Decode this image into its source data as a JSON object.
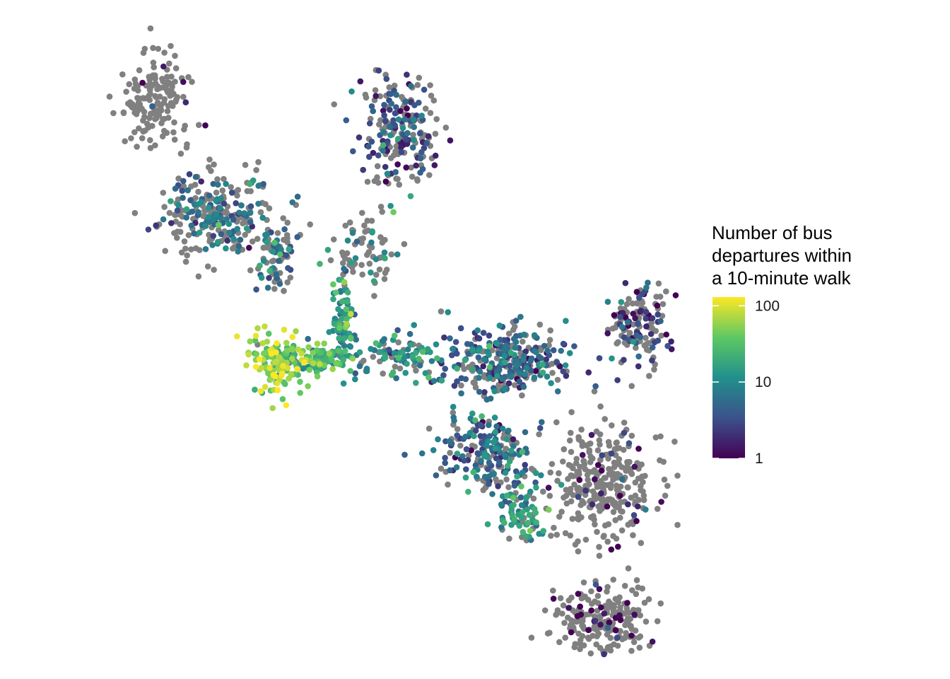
{
  "legend": {
    "title_lines": [
      "Number of bus",
      "departures within",
      "a 10-minute walk"
    ],
    "scale": "log10",
    "range": [
      1,
      130
    ],
    "ticks": [
      {
        "value": 100,
        "label": "100"
      },
      {
        "value": 10,
        "label": "10"
      },
      {
        "value": 1,
        "label": "1"
      }
    ],
    "palette": "viridis",
    "gradient_stops": [
      "#440154",
      "#3b528b",
      "#21908c",
      "#5dc863",
      "#fde725"
    ]
  },
  "colors": {
    "no_service": "#808080",
    "background": "#ffffff"
  },
  "chart_data": {
    "type": "scatter",
    "title": "",
    "color_variable": "Number of bus departures within a 10-minute walk",
    "color_scale": "log10",
    "no_service_color": "#808080",
    "clusters": [
      {
        "cx": 0.09,
        "cy": 0.13,
        "sx": 0.05,
        "sy": 0.07,
        "n": 160,
        "service": 0.03,
        "level": 0.0
      },
      {
        "cx": 0.2,
        "cy": 0.3,
        "sx": 0.09,
        "sy": 0.06,
        "n": 260,
        "service": 0.4,
        "level": 0.35
      },
      {
        "cx": 0.3,
        "cy": 0.37,
        "sx": 0.03,
        "sy": 0.05,
        "n": 80,
        "service": 0.35,
        "level": 0.4
      },
      {
        "cx": 0.51,
        "cy": 0.17,
        "sx": 0.06,
        "sy": 0.09,
        "n": 210,
        "service": 0.45,
        "level": 0.25
      },
      {
        "cx": 0.45,
        "cy": 0.36,
        "sx": 0.06,
        "sy": 0.05,
        "n": 70,
        "service": 0.3,
        "level": 0.45
      },
      {
        "cx": 0.42,
        "cy": 0.48,
        "sx": 0.02,
        "sy": 0.07,
        "n": 90,
        "service": 0.9,
        "level": 0.55
      },
      {
        "cx": 0.3,
        "cy": 0.54,
        "sx": 0.04,
        "sy": 0.05,
        "n": 110,
        "service": 0.95,
        "level": 0.85
      },
      {
        "cx": 0.36,
        "cy": 0.53,
        "sx": 0.07,
        "sy": 0.02,
        "n": 120,
        "service": 0.95,
        "level": 0.65
      },
      {
        "cx": 0.52,
        "cy": 0.53,
        "sx": 0.07,
        "sy": 0.03,
        "n": 90,
        "service": 0.8,
        "level": 0.45
      },
      {
        "cx": 0.7,
        "cy": 0.54,
        "sx": 0.1,
        "sy": 0.05,
        "n": 300,
        "service": 0.7,
        "level": 0.3
      },
      {
        "cx": 0.93,
        "cy": 0.48,
        "sx": 0.05,
        "sy": 0.06,
        "n": 140,
        "service": 0.45,
        "level": 0.15
      },
      {
        "cx": 0.67,
        "cy": 0.68,
        "sx": 0.08,
        "sy": 0.06,
        "n": 200,
        "service": 0.7,
        "level": 0.35
      },
      {
        "cx": 0.73,
        "cy": 0.78,
        "sx": 0.04,
        "sy": 0.05,
        "n": 70,
        "service": 0.8,
        "level": 0.5
      },
      {
        "cx": 0.87,
        "cy": 0.73,
        "sx": 0.08,
        "sy": 0.09,
        "n": 300,
        "service": 0.08,
        "level": 0.1
      },
      {
        "cx": 0.87,
        "cy": 0.95,
        "sx": 0.08,
        "sy": 0.05,
        "n": 220,
        "service": 0.15,
        "level": 0.05
      }
    ]
  }
}
